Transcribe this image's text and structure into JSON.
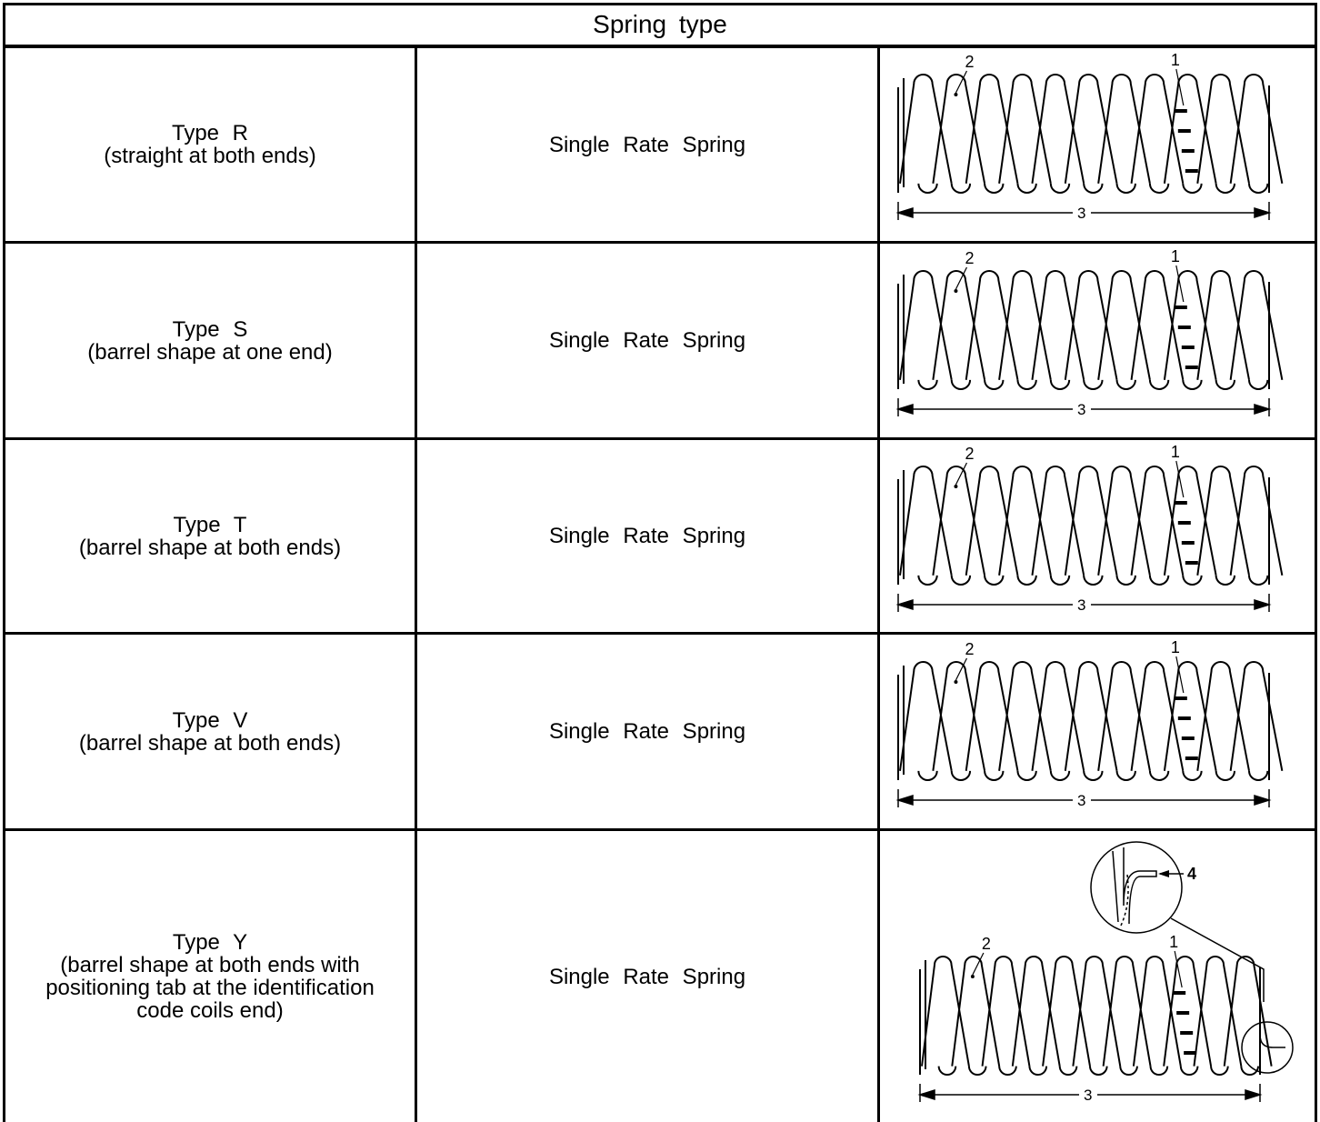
{
  "table": {
    "header": "Spring type",
    "rows": [
      {
        "type_label": "Type  R",
        "type_desc": "(straight at both ends)",
        "rate": "Single Rate Spring",
        "callouts": {
          "code": "1",
          "coil": "2",
          "length": "3"
        }
      },
      {
        "type_label": "Type  S",
        "type_desc": "(barrel shape at one end)",
        "rate": "Single Rate Spring",
        "callouts": {
          "code": "1",
          "coil": "2",
          "length": "3"
        }
      },
      {
        "type_label": "Type  T",
        "type_desc": "(barrel shape at both ends)",
        "rate": "Single Rate Spring",
        "callouts": {
          "code": "1",
          "coil": "2",
          "length": "3"
        }
      },
      {
        "type_label": "Type  V",
        "type_desc": "(barrel shape at both ends)",
        "rate": "Single Rate Spring",
        "callouts": {
          "code": "1",
          "coil": "2",
          "length": "3"
        }
      },
      {
        "type_label": "Type  Y",
        "type_desc": "(barrel shape at both ends with positioning tab at the identification code coils end)",
        "rate": "Single Rate Spring",
        "callouts": {
          "code": "1",
          "coil": "2",
          "length": "3",
          "tab": "4"
        }
      }
    ]
  }
}
